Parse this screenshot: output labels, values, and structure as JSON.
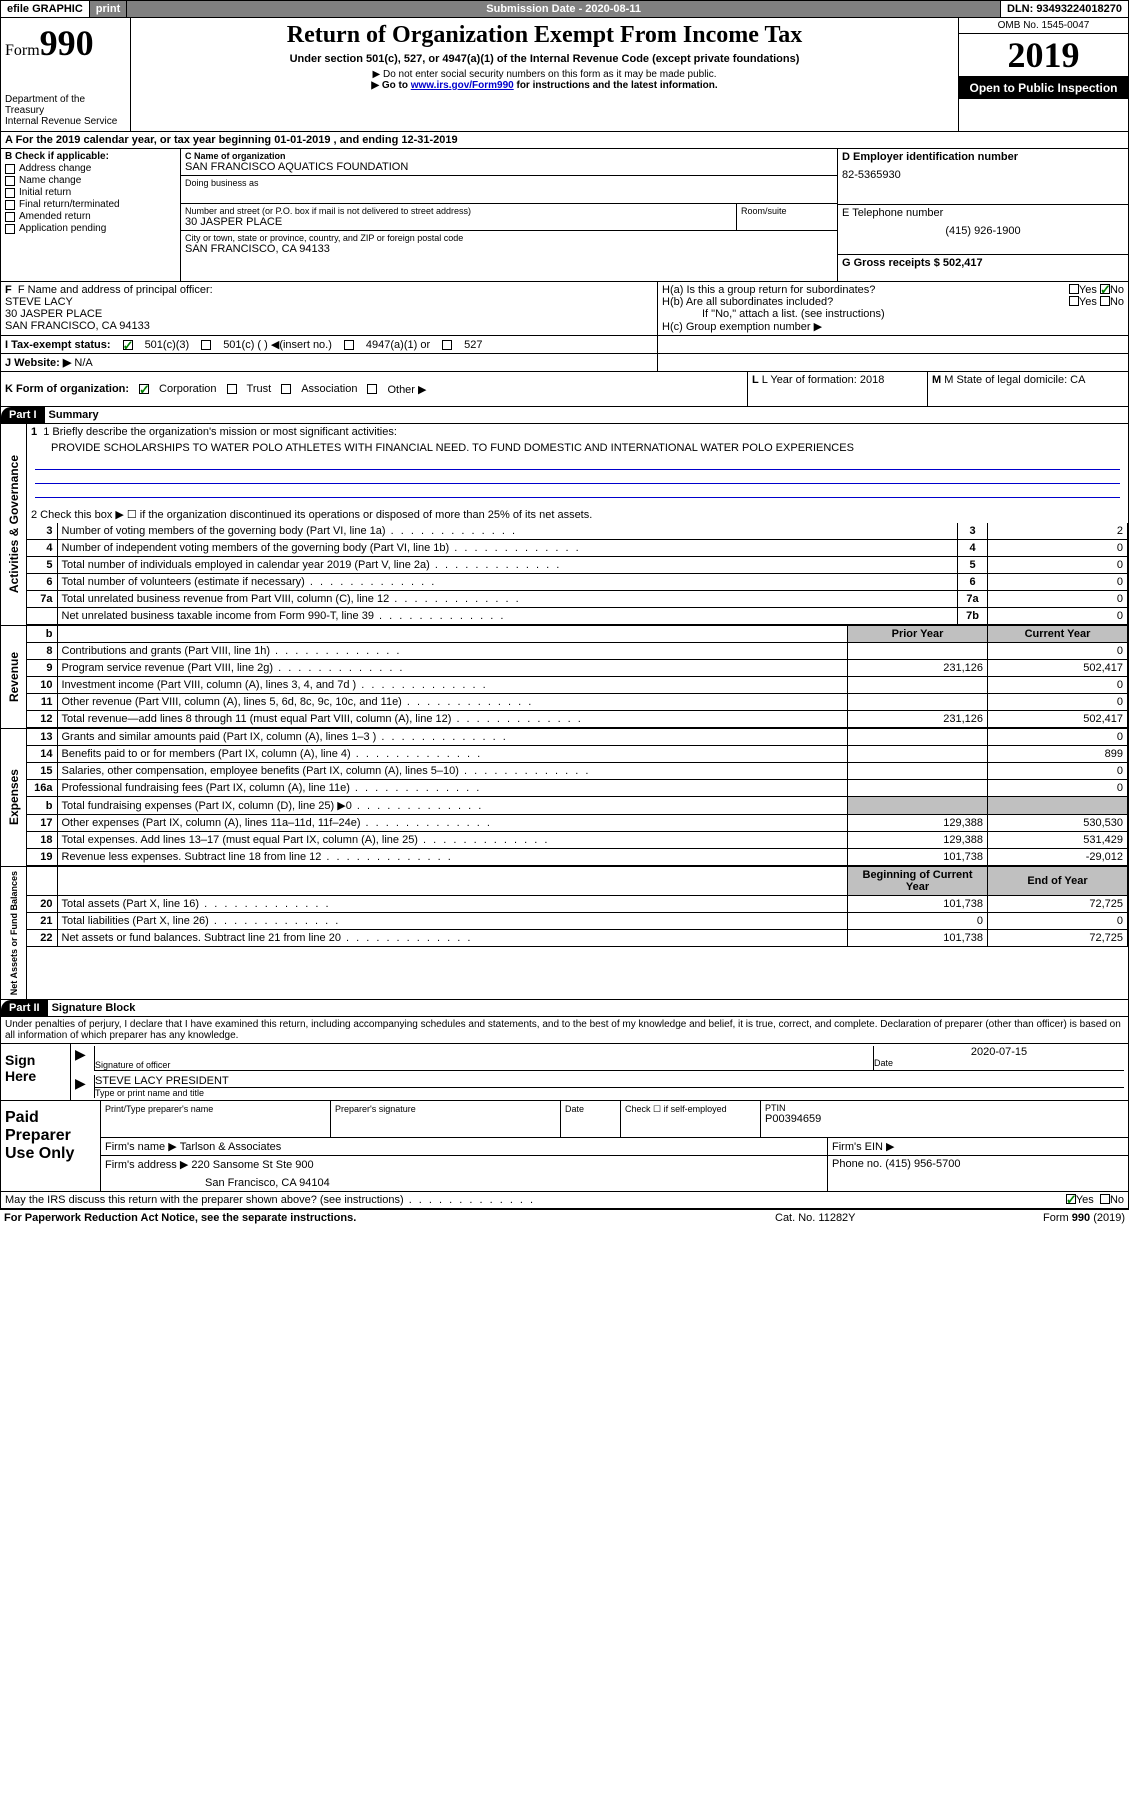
{
  "topbar": {
    "efile": "efile GRAPHIC",
    "print": "print",
    "submission_label": "Submission Date - 2020-08-11",
    "dln": "DLN: 93493224018270"
  },
  "header": {
    "form_word": "Form",
    "form_num": "990",
    "dept1": "Department of the Treasury",
    "dept2": "Internal Revenue Service",
    "title": "Return of Organization Exempt From Income Tax",
    "subtitle": "Under section 501(c), 527, or 4947(a)(1) of the Internal Revenue Code (except private foundations)",
    "note1": "▶ Do not enter social security numbers on this form as it may be made public.",
    "note2_pre": "▶ Go to ",
    "note2_link": "www.irs.gov/Form990",
    "note2_post": " for instructions and the latest information.",
    "omb": "OMB No. 1545-0047",
    "year": "2019",
    "inspect": "Open to Public Inspection"
  },
  "lineA": "A For the 2019 calendar year, or tax year beginning 01-01-2019     , and ending 12-31-2019",
  "sectionB": {
    "label": "B Check if applicable:",
    "items": [
      "Address change",
      "Name change",
      "Initial return",
      "Final return/terminated",
      "Amended return",
      "Application pending"
    ]
  },
  "sectionC": {
    "name_label": "C Name of organization",
    "name": "SAN FRANCISCO AQUATICS FOUNDATION",
    "dba_label": "Doing business as",
    "addr_label": "Number and street (or P.O. box if mail is not delivered to street address)",
    "room_label": "Room/suite",
    "addr": "30 JASPER PLACE",
    "city_label": "City or town, state or province, country, and ZIP or foreign postal code",
    "city": "SAN FRANCISCO, CA  94133"
  },
  "sectionD": {
    "label": "D Employer identification number",
    "val": "82-5365930"
  },
  "sectionE": {
    "label": "E Telephone number",
    "val": "(415) 926-1900"
  },
  "sectionG": {
    "label": "G Gross receipts $ 502,417"
  },
  "sectionF": {
    "label": "F  Name and address of principal officer:",
    "l1": "STEVE LACY",
    "l2": "30 JASPER PLACE",
    "l3": "SAN FRANCISCO, CA  94133"
  },
  "sectionH": {
    "ha": "H(a)  Is this a group return for subordinates?",
    "hb": "H(b)  Are all subordinates included?",
    "hb_note": "If \"No,\" attach a list. (see instructions)",
    "hc": "H(c)  Group exemption number ▶"
  },
  "sectionI": {
    "label": "I   Tax-exempt status:",
    "o1": "501(c)(3)",
    "o2": "501(c) (  ) ◀(insert no.)",
    "o3": "4947(a)(1) or",
    "o4": "527"
  },
  "sectionJ": {
    "label": "J   Website: ▶",
    "val": "  N/A"
  },
  "sectionK": {
    "label": "K Form of organization:",
    "o1": "Corporation",
    "o2": "Trust",
    "o3": "Association",
    "o4": "Other ▶"
  },
  "sectionL": {
    "label": "L Year of formation: 2018"
  },
  "sectionM": {
    "label": "M State of legal domicile: CA"
  },
  "part1": {
    "header": "Part I",
    "title": "Summary",
    "q1": "1  Briefly describe the organization's mission or most significant activities:",
    "q1_ans": "PROVIDE SCHOLARSHIPS TO WATER POLO ATHLETES WITH FINANCIAL NEED. TO FUND DOMESTIC AND INTERNATIONAL WATER POLO EXPERIENCES",
    "q2": "2  Check this box ▶ ☐  if the organization discontinued its operations or disposed of more than 25% of its net assets.",
    "col_prior": "Prior Year",
    "col_current": "Current Year",
    "col_begin": "Beginning of Current Year",
    "col_end": "End of Year"
  },
  "side_labels": {
    "gov": "Activities & Governance",
    "rev": "Revenue",
    "exp": "Expenses",
    "net": "Net Assets or Fund Balances"
  },
  "gov_rows": [
    {
      "n": "3",
      "t": "Number of voting members of the governing body (Part VI, line 1a)",
      "box": "3",
      "v": "2"
    },
    {
      "n": "4",
      "t": "Number of independent voting members of the governing body (Part VI, line 1b)",
      "box": "4",
      "v": "0"
    },
    {
      "n": "5",
      "t": "Total number of individuals employed in calendar year 2019 (Part V, line 2a)",
      "box": "5",
      "v": "0"
    },
    {
      "n": "6",
      "t": "Total number of volunteers (estimate if necessary)",
      "box": "6",
      "v": "0"
    },
    {
      "n": "7a",
      "t": "Total unrelated business revenue from Part VIII, column (C), line 12",
      "box": "7a",
      "v": "0"
    },
    {
      "n": "",
      "t": "Net unrelated business taxable income from Form 990-T, line 39",
      "box": "7b",
      "v": "0"
    }
  ],
  "rev_rows": [
    {
      "n": "8",
      "t": "Contributions and grants (Part VIII, line 1h)",
      "p": "",
      "c": "0"
    },
    {
      "n": "9",
      "t": "Program service revenue (Part VIII, line 2g)",
      "p": "231,126",
      "c": "502,417"
    },
    {
      "n": "10",
      "t": "Investment income (Part VIII, column (A), lines 3, 4, and 7d )",
      "p": "",
      "c": "0"
    },
    {
      "n": "11",
      "t": "Other revenue (Part VIII, column (A), lines 5, 6d, 8c, 9c, 10c, and 11e)",
      "p": "",
      "c": "0"
    },
    {
      "n": "12",
      "t": "Total revenue—add lines 8 through 11 (must equal Part VIII, column (A), line 12)",
      "p": "231,126",
      "c": "502,417"
    }
  ],
  "exp_rows": [
    {
      "n": "13",
      "t": "Grants and similar amounts paid (Part IX, column (A), lines 1–3 )",
      "p": "",
      "c": "0"
    },
    {
      "n": "14",
      "t": "Benefits paid to or for members (Part IX, column (A), line 4)",
      "p": "",
      "c": "899"
    },
    {
      "n": "15",
      "t": "Salaries, other compensation, employee benefits (Part IX, column (A), lines 5–10)",
      "p": "",
      "c": "0"
    },
    {
      "n": "16a",
      "t": "Professional fundraising fees (Part IX, column (A), line 11e)",
      "p": "",
      "c": "0"
    },
    {
      "n": "b",
      "t": "Total fundraising expenses (Part IX, column (D), line 25) ▶0",
      "p": "GREY",
      "c": "GREY"
    },
    {
      "n": "17",
      "t": "Other expenses (Part IX, column (A), lines 11a–11d, 11f–24e)",
      "p": "129,388",
      "c": "530,530"
    },
    {
      "n": "18",
      "t": "Total expenses. Add lines 13–17 (must equal Part IX, column (A), line 25)",
      "p": "129,388",
      "c": "531,429"
    },
    {
      "n": "19",
      "t": "Revenue less expenses. Subtract line 18 from line 12",
      "p": "101,738",
      "c": "-29,012"
    }
  ],
  "net_rows": [
    {
      "n": "20",
      "t": "Total assets (Part X, line 16)",
      "p": "101,738",
      "c": "72,725"
    },
    {
      "n": "21",
      "t": "Total liabilities (Part X, line 26)",
      "p": "0",
      "c": "0"
    },
    {
      "n": "22",
      "t": "Net assets or fund balances. Subtract line 21 from line 20",
      "p": "101,738",
      "c": "72,725"
    }
  ],
  "part2": {
    "header": "Part II",
    "title": "Signature Block",
    "decl": "Under penalties of perjury, I declare that I have examined this return, including accompanying schedules and statements, and to the best of my knowledge and belief, it is true, correct, and complete. Declaration of preparer (other than officer) is based on all information of which preparer has any knowledge."
  },
  "sign": {
    "here": "Sign Here",
    "sig_label": "Signature of officer",
    "date_label": "Date",
    "date": "2020-07-15",
    "name": "STEVE LACY PRESIDENT",
    "name_label": "Type or print name and title"
  },
  "preparer": {
    "title": "Paid Preparer Use Only",
    "h1": "Print/Type preparer's name",
    "h2": "Preparer's signature",
    "h3": "Date",
    "h4": "Check ☐  if self-employed",
    "h5_label": "PTIN",
    "h5": "P00394659",
    "firm_label": "Firm's name     ▶",
    "firm": "Tarlson & Associates",
    "ein_label": "Firm's EIN ▶",
    "addr_label": "Firm's address ▶",
    "addr1": "220 Sansome St Ste 900",
    "addr2": "San Francisco, CA  94104",
    "phone_label": "Phone no. (415) 956-5700"
  },
  "footer": {
    "discuss": "May the IRS discuss this return with the preparer shown above? (see instructions)",
    "paperwork": "For Paperwork Reduction Act Notice, see the separate instructions.",
    "cat": "Cat. No. 11282Y",
    "form": "Form 990 (2019)"
  },
  "yn": {
    "yes": "Yes",
    "no": "No"
  }
}
